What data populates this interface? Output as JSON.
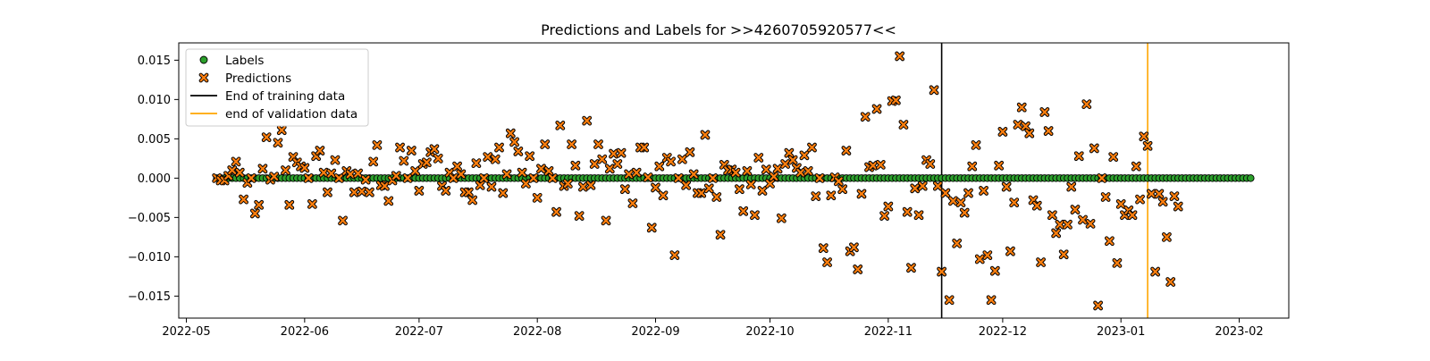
{
  "chart_data": {
    "type": "scatter",
    "title": "Predictions and Labels for >>4260705920577<<",
    "xlabel": "",
    "ylabel": "",
    "x_range": [
      "2022-04-29",
      "2023-02-14"
    ],
    "ylim": [
      -0.0178,
      0.0172
    ],
    "grid": false,
    "legend_position": "top-left",
    "x_ticks": [
      "2022-05",
      "2022-06",
      "2022-07",
      "2022-08",
      "2022-09",
      "2022-10",
      "2022-11",
      "2022-12",
      "2023-01",
      "2023-02"
    ],
    "y_ticks": [
      "0.015",
      "0.010",
      "0.005",
      "0.000",
      "−0.005",
      "−0.010",
      "−0.015"
    ],
    "y_tick_values": [
      0.015,
      0.01,
      0.005,
      0.0,
      -0.005,
      -0.01,
      -0.015
    ],
    "labels_series": {
      "name": "Labels",
      "start_date": "2022-05-09",
      "end_date": "2023-02-04",
      "value": 0.0,
      "color": "#2ca02c",
      "edge": "#000000"
    },
    "predictions_series": {
      "name": "Predictions",
      "start_date": "2022-05-09",
      "color": "#ff7f0e",
      "edge": "#000000",
      "values": [
        0.0,
        -0.0003,
        -0.0003,
        0.0003,
        0.001,
        0.0021,
        0.0007,
        -0.0027,
        -0.0006,
        0.0,
        -0.0045,
        -0.0034,
        0.0012,
        0.0052,
        -0.0002,
        0.0002,
        0.0045,
        0.0061,
        0.001,
        -0.0034,
        0.0027,
        0.002,
        0.0015,
        0.0013,
        0.0,
        -0.0033,
        0.0028,
        0.0035,
        0.0007,
        -0.0018,
        0.0006,
        0.0023,
        0.0,
        -0.0054,
        0.0009,
        0.0005,
        -0.0018,
        0.0006,
        -0.0017,
        -0.0002,
        -0.0018,
        0.0021,
        0.0042,
        -0.0009,
        -0.001,
        -0.0029,
        -0.0003,
        0.0003,
        0.0039,
        0.0022,
        0.0,
        0.0035,
        0.0009,
        -0.0016,
        0.0018,
        0.002,
        0.0033,
        0.0037,
        0.0025,
        -0.001,
        -0.0016,
        0.0007,
        0.0,
        0.0015,
        0.0005,
        -0.0018,
        -0.0018,
        -0.0028,
        0.0019,
        -0.0009,
        0.0,
        0.0027,
        -0.0011,
        0.0024,
        0.0039,
        -0.0019,
        0.0005,
        0.0057,
        0.0046,
        0.0034,
        0.0007,
        -0.0007,
        0.0028,
        0.0,
        -0.0025,
        0.0012,
        0.0043,
        0.0009,
        0.0,
        -0.0043,
        0.0067,
        -0.001,
        -0.0007,
        0.0043,
        0.0016,
        -0.0048,
        -0.0011,
        0.0073,
        -0.0009,
        0.0018,
        0.0043,
        0.0024,
        -0.0054,
        0.0012,
        0.0031,
        0.0018,
        0.0032,
        -0.0014,
        0.0005,
        -0.0032,
        0.0007,
        0.0039,
        0.0039,
        0.0001,
        -0.0063,
        -0.0012,
        0.0015,
        -0.0022,
        0.0026,
        0.0021,
        -0.0098,
        0.0,
        0.0024,
        -0.0009,
        0.0033,
        0.0005,
        -0.0019,
        -0.0019,
        0.0055,
        -0.0013,
        0.0,
        -0.0024,
        -0.0072,
        0.0017,
        0.001,
        0.0011,
        0.0007,
        -0.0014,
        -0.0042,
        0.0009,
        -0.0008,
        -0.0047,
        0.0026,
        -0.0016,
        0.0011,
        -0.0007,
        0.0002,
        0.0012,
        -0.0051,
        0.0018,
        0.0032,
        0.0023,
        0.0013,
        0.0007,
        0.0029,
        0.0009,
        0.0039,
        -0.0023,
        0.0,
        -0.0089,
        -0.0107,
        -0.0022,
        0.0001,
        -0.0004,
        -0.0014,
        0.0035,
        -0.0093,
        -0.0088,
        -0.0116,
        -0.002,
        0.0078,
        0.0014,
        0.0016,
        0.0088,
        0.0017,
        -0.0048,
        -0.0036,
        0.0098,
        0.0099,
        0.0155,
        0.0068,
        -0.0043,
        -0.0114,
        -0.0013,
        -0.0047,
        -0.001,
        0.0023,
        0.0018,
        0.0112,
        -0.001,
        -0.0119,
        -0.0019,
        -0.0155,
        -0.0029,
        -0.0083,
        -0.0031,
        -0.0044,
        -0.0019,
        0.0015,
        0.0042,
        -0.0103,
        -0.0016,
        -0.0098,
        -0.0155,
        -0.0118,
        0.0016,
        0.0059,
        -0.0011,
        -0.0093,
        -0.0031,
        0.0068,
        0.009,
        0.0066,
        0.0057,
        -0.0028,
        -0.0035,
        -0.0107,
        0.0084,
        0.006,
        -0.0047,
        -0.007,
        -0.0059,
        -0.0097,
        -0.0059,
        -0.0011,
        -0.004,
        0.0028,
        -0.0053,
        0.0094,
        -0.0058,
        0.0038,
        -0.0162,
        0.0,
        -0.0024,
        -0.008,
        0.0027,
        -0.0108,
        -0.0033,
        -0.0047,
        -0.0041,
        -0.0047,
        0.0015,
        -0.0027,
        0.0053,
        0.0041,
        -0.002,
        -0.0119,
        -0.002,
        -0.003,
        -0.0075,
        -0.0132,
        -0.0023,
        -0.0036
      ]
    },
    "lines": [
      {
        "name": "End of training data",
        "date": "2022-11-15",
        "color": "#000000"
      },
      {
        "name": "end of validation data",
        "date": "2023-01-08",
        "color": "#ffa500"
      }
    ]
  }
}
